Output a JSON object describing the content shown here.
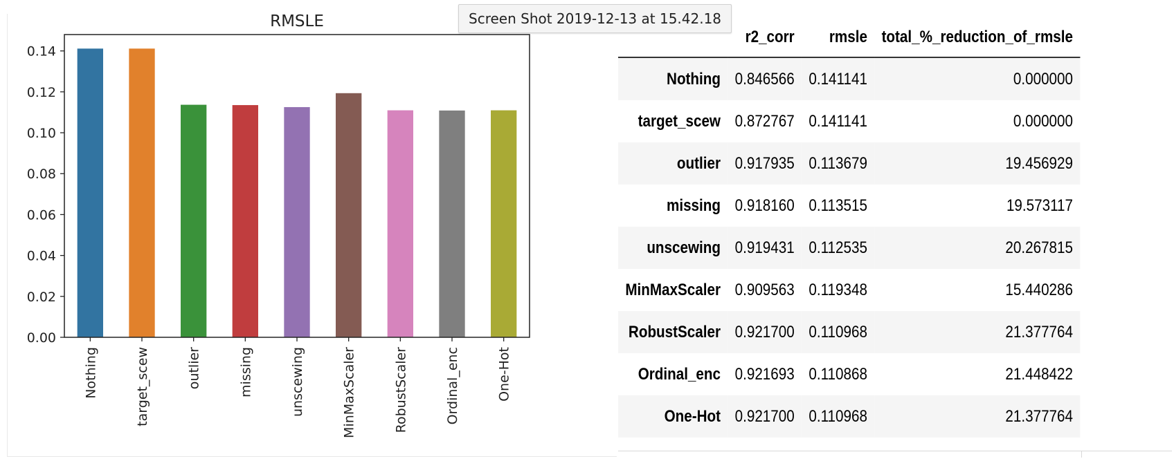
{
  "tooltip": "Screen Shot 2019-12-13 at 15.42.18",
  "chart_data": {
    "type": "bar",
    "title": "RMSLE",
    "xlabel": "",
    "ylabel": "",
    "categories": [
      "Nothing",
      "target_scew",
      "outlier",
      "missing",
      "unscewing",
      "MinMaxScaler",
      "RobustScaler",
      "Ordinal_enc",
      "One-Hot"
    ],
    "values": [
      0.141141,
      0.141141,
      0.113679,
      0.113515,
      0.112535,
      0.119348,
      0.110968,
      0.110868,
      0.110968
    ],
    "ylim": [
      0,
      0.148
    ],
    "yticks": [
      "0.00",
      "0.02",
      "0.04",
      "0.06",
      "0.08",
      "0.10",
      "0.12",
      "0.14"
    ],
    "grid": false,
    "colors": [
      "#3274a1",
      "#e1812c",
      "#3a923a",
      "#c03d3e",
      "#9372b2",
      "#845b53",
      "#d684bd",
      "#7f7f7f",
      "#a9aa35"
    ]
  },
  "table": {
    "columns": [
      "",
      "r2_corr",
      "rmsle",
      "total_%_reduction_of_rmsle"
    ],
    "rows": [
      {
        "index": "Nothing",
        "cells": [
          "0.846566",
          "0.141141",
          "0.000000"
        ]
      },
      {
        "index": "target_scew",
        "cells": [
          "0.872767",
          "0.141141",
          "0.000000"
        ]
      },
      {
        "index": "outlier",
        "cells": [
          "0.917935",
          "0.113679",
          "19.456929"
        ]
      },
      {
        "index": "missing",
        "cells": [
          "0.918160",
          "0.113515",
          "19.573117"
        ]
      },
      {
        "index": "unscewing",
        "cells": [
          "0.919431",
          "0.112535",
          "20.267815"
        ]
      },
      {
        "index": "MinMaxScaler",
        "cells": [
          "0.909563",
          "0.119348",
          "15.440286"
        ]
      },
      {
        "index": "RobustScaler",
        "cells": [
          "0.921700",
          "0.110968",
          "21.377764"
        ]
      },
      {
        "index": "Ordinal_enc",
        "cells": [
          "0.921693",
          "0.110868",
          "21.448422"
        ]
      },
      {
        "index": "One-Hot",
        "cells": [
          "0.921700",
          "0.110968",
          "21.377764"
        ]
      }
    ]
  }
}
